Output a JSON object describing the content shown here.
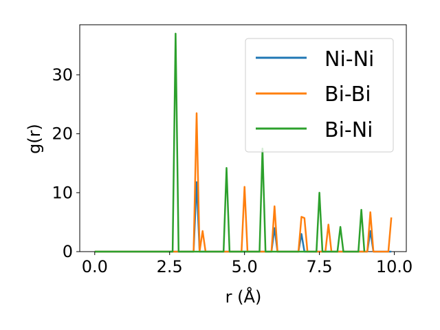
{
  "chart_data": {
    "type": "line",
    "xlabel": "r (Å)",
    "ylabel": "g(r)",
    "xlim": [
      -0.5,
      10.4
    ],
    "ylim": [
      0,
      38.5
    ],
    "xticks": [
      0.0,
      2.5,
      5.0,
      7.5,
      10.0
    ],
    "xtick_labels": [
      "0.0",
      "2.5",
      "5.0",
      "7.5",
      "10.0"
    ],
    "yticks": [
      0,
      10,
      20,
      30
    ],
    "ytick_labels": [
      "0",
      "10",
      "20",
      "30"
    ],
    "grid": false,
    "legend_position": "top-right",
    "series": [
      {
        "name": "Ni-Ni",
        "color": "#1f77b4",
        "x": [
          0.0,
          3.3,
          3.4,
          3.5,
          5.9,
          6.0,
          6.1,
          6.8,
          6.9,
          7.0,
          9.1,
          9.2,
          9.3,
          9.9
        ],
        "y": [
          0,
          0,
          11.8,
          0,
          0,
          4,
          0,
          0,
          3,
          0,
          0,
          3.5,
          0,
          0
        ]
      },
      {
        "name": "Bi-Bi",
        "color": "#ff7f0e",
        "x": [
          0.0,
          3.3,
          3.4,
          3.5,
          3.6,
          3.7,
          4.9,
          5.0,
          5.1,
          5.9,
          6.0,
          6.1,
          6.8,
          6.9,
          7.0,
          7.1,
          7.7,
          7.8,
          7.9,
          9.1,
          9.2,
          9.3,
          9.8,
          9.9
        ],
        "y": [
          0,
          0,
          23.5,
          0,
          3.5,
          0,
          0,
          11,
          0,
          0,
          7.7,
          0,
          0,
          5.9,
          5.7,
          0,
          0,
          4.6,
          0,
          0,
          6.7,
          0,
          0,
          5.8
        ]
      },
      {
        "name": "Bi-Ni",
        "color": "#2ca02c",
        "x": [
          0.0,
          2.6,
          2.7,
          2.8,
          4.3,
          4.4,
          4.5,
          5.5,
          5.6,
          5.7,
          7.4,
          7.5,
          7.6,
          8.1,
          8.2,
          8.3,
          8.8,
          8.9,
          9.0
        ],
        "y": [
          0,
          0,
          37,
          0,
          0,
          14.2,
          0,
          0,
          17.5,
          0,
          0,
          10,
          0,
          0,
          4.2,
          0,
          0,
          7.1,
          0
        ]
      }
    ]
  }
}
